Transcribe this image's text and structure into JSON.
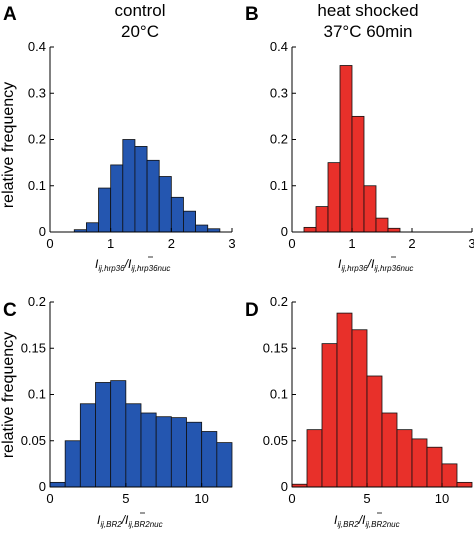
{
  "panels": {
    "A": {
      "letter": "A",
      "title_line1": "control",
      "title_line2": "20°C"
    },
    "B": {
      "letter": "B",
      "title_line1": "heat shocked",
      "title_line2": "37°C 60min"
    },
    "C": {
      "letter": "C"
    },
    "D": {
      "letter": "D"
    }
  },
  "y_axis_label": "relative frequency",
  "x_labels": {
    "top": {
      "num_main": "I",
      "num_sub": "ij,hrp36",
      "den_main": "I",
      "den_sub": "ij,hrp36nuc"
    },
    "bottom": {
      "num_main": "I",
      "num_sub": "ij,BR2",
      "den_main": "I",
      "den_sub": "ij,BR2nuc"
    }
  },
  "colors": {
    "blue": "#2456b0",
    "red": "#e8302a",
    "edge": "#111111"
  },
  "chart_data": [
    {
      "panel": "A",
      "type": "bar",
      "color": "blue",
      "bin_width": 0.2,
      "x": [
        0.5,
        0.7,
        0.9,
        1.1,
        1.3,
        1.5,
        1.7,
        1.9,
        2.1,
        2.3,
        2.5,
        2.7
      ],
      "values": [
        0.005,
        0.02,
        0.095,
        0.145,
        0.2,
        0.185,
        0.155,
        0.12,
        0.075,
        0.045,
        0.015,
        0.007
      ],
      "xlim": [
        0,
        3
      ],
      "ylim": [
        0,
        0.4
      ],
      "xticks": [
        0,
        1,
        2,
        3
      ],
      "yticks": [
        0,
        0.1,
        0.2,
        0.3,
        0.4
      ],
      "xtick_labels": [
        "0",
        "1",
        "2",
        "3"
      ],
      "ytick_labels": [
        "0",
        "0.1",
        "0.2",
        "0.3",
        "0.4"
      ]
    },
    {
      "panel": "B",
      "type": "bar",
      "color": "red",
      "bin_width": 0.2,
      "x": [
        0.3,
        0.5,
        0.7,
        0.9,
        1.1,
        1.3,
        1.5,
        1.7
      ],
      "values": [
        0.01,
        0.055,
        0.15,
        0.36,
        0.25,
        0.1,
        0.03,
        0.008
      ],
      "xlim": [
        0,
        3
      ],
      "ylim": [
        0,
        0.4
      ],
      "xticks": [
        0,
        1,
        2,
        3
      ],
      "yticks": [
        0,
        0.1,
        0.2,
        0.3,
        0.4
      ],
      "xtick_labels": [
        "0",
        "1",
        "2",
        "3"
      ],
      "ytick_labels": [
        "0",
        "0.1",
        "0.2",
        "0.3",
        "0.4"
      ]
    },
    {
      "panel": "C",
      "type": "bar",
      "color": "blue",
      "bin_width": 1,
      "x": [
        0.5,
        1.5,
        2.5,
        3.5,
        4.5,
        5.5,
        6.5,
        7.5,
        8.5,
        9.5,
        10.5,
        11.5
      ],
      "values": [
        0.005,
        0.05,
        0.09,
        0.113,
        0.115,
        0.09,
        0.08,
        0.076,
        0.075,
        0.07,
        0.06,
        0.048
      ],
      "xlim": [
        0,
        12
      ],
      "ylim": [
        0,
        0.2
      ],
      "xticks": [
        0,
        5,
        10
      ],
      "yticks": [
        0,
        0.05,
        0.1,
        0.15,
        0.2
      ],
      "xtick_labels": [
        "0",
        "5",
        "10"
      ],
      "ytick_labels": [
        "0",
        "0.05",
        "0.1",
        "0.15",
        "0.2"
      ]
    },
    {
      "panel": "D",
      "type": "bar",
      "color": "red",
      "bin_width": 1,
      "x": [
        0.5,
        1.5,
        2.5,
        3.5,
        4.5,
        5.5,
        6.5,
        7.5,
        8.5,
        9.5,
        10.5,
        11.5
      ],
      "values": [
        0.003,
        0.062,
        0.155,
        0.188,
        0.17,
        0.12,
        0.08,
        0.062,
        0.052,
        0.043,
        0.025,
        0.005
      ],
      "xlim": [
        0,
        12
      ],
      "ylim": [
        0,
        0.2
      ],
      "xticks": [
        0,
        5,
        10
      ],
      "yticks": [
        0,
        0.05,
        0.1,
        0.15,
        0.2
      ],
      "xtick_labels": [
        "0",
        "5",
        "10"
      ],
      "ytick_labels": [
        "0",
        "0.05",
        "0.1",
        "0.15",
        "0.2"
      ]
    }
  ]
}
